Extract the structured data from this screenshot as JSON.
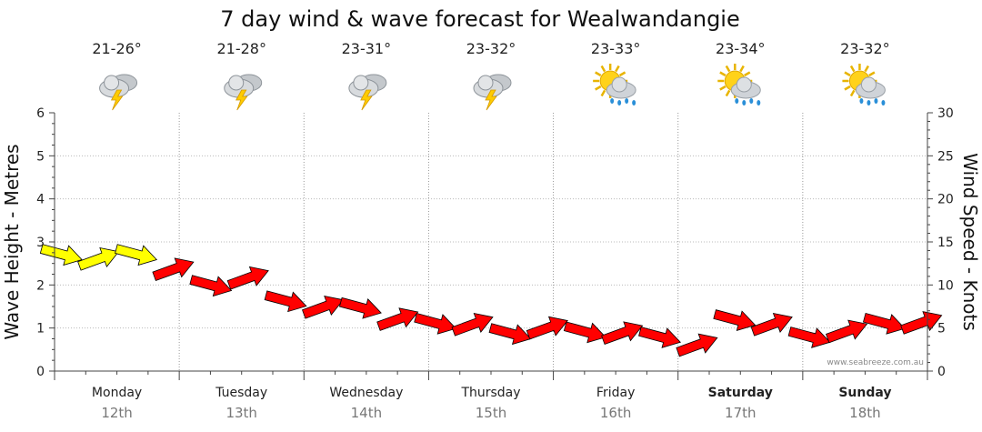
{
  "chart_data": {
    "type": "line",
    "title": "7 day wind & wave forecast for Wealwandangie",
    "ylabel_left": "Wave Height - Metres",
    "ylabel_right": "Wind Speed - Knots",
    "ylim_left": [
      0,
      6
    ],
    "ylim_right": [
      0,
      30
    ],
    "yticks_left": [
      "0",
      "1",
      "2",
      "3",
      "4",
      "5",
      "6"
    ],
    "yticks_right": [
      "0",
      "5",
      "10",
      "15",
      "20",
      "25",
      "30"
    ],
    "grid": true,
    "watermark": "www.seabreeze.com.au",
    "days": [
      {
        "day": "Monday",
        "date": "12th",
        "temp": "21-26°",
        "icon": "thunderstorm-icon",
        "bold": false
      },
      {
        "day": "Tuesday",
        "date": "13th",
        "temp": "21-28°",
        "icon": "thunderstorm-icon",
        "bold": false
      },
      {
        "day": "Wednesday",
        "date": "14th",
        "temp": "23-31°",
        "icon": "thunderstorm-icon",
        "bold": false
      },
      {
        "day": "Thursday",
        "date": "15th",
        "temp": "23-32°",
        "icon": "thunderstorm-icon",
        "bold": false
      },
      {
        "day": "Friday",
        "date": "16th",
        "temp": "23-33°",
        "icon": "sun-showers-icon",
        "bold": false
      },
      {
        "day": "Saturday",
        "date": "17th",
        "temp": "23-34°",
        "icon": "sun-showers-icon",
        "bold": true
      },
      {
        "day": "Sunday",
        "date": "18th",
        "temp": "23-32°",
        "icon": "sun-showers-icon",
        "bold": true
      }
    ],
    "series": [
      {
        "x_days": [
          0.0,
          0.3,
          0.6,
          0.9,
          1.2,
          1.5,
          1.8,
          2.1,
          2.4,
          2.7,
          3.0,
          3.3,
          3.6,
          3.9,
          4.2,
          4.5,
          4.8,
          5.1,
          5.4,
          5.7,
          6.0,
          6.3,
          6.6,
          6.9
        ],
        "values": [
          13.6,
          13.0,
          13.6,
          11.8,
          10.0,
          10.8,
          8.2,
          7.4,
          7.4,
          6.0,
          5.6,
          5.4,
          4.4,
          5.0,
          4.6,
          4.4,
          4.0,
          3.0,
          6.0,
          5.4,
          4.0,
          4.6,
          5.6,
          5.6
        ],
        "colors": [
          "#ffff00",
          "#ffff00",
          "#ffff00",
          "#ff0000",
          "#ff0000",
          "#ff0000",
          "#ff0000",
          "#ff0000",
          "#ff0000",
          "#ff0000",
          "#ff0000",
          "#ff0000",
          "#ff0000",
          "#ff0000",
          "#ff0000",
          "#ff0000",
          "#ff0000",
          "#ff0000",
          "#ff0000",
          "#ff0000",
          "#ff0000",
          "#ff0000",
          "#ff0000",
          "#ff0000"
        ]
      }
    ]
  }
}
